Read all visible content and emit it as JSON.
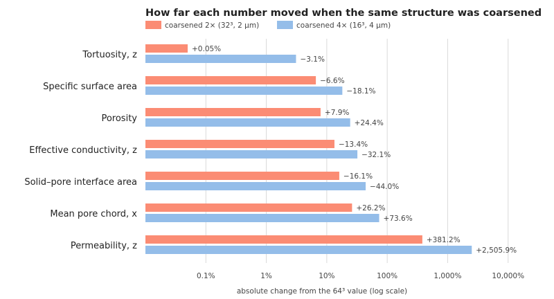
{
  "chart_data": {
    "type": "bar",
    "orientation": "horizontal",
    "title": "How far each number moved when the same structure was coarsened",
    "xlabel": "absolute change from the 64³ value  (log scale)",
    "ylabel": "",
    "x_scale": "log",
    "xlim": [
      0.01,
      20000
    ],
    "ticks": [
      {
        "value": 0.1,
        "label": "0.1%"
      },
      {
        "value": 1,
        "label": "1%"
      },
      {
        "value": 10,
        "label": "10%"
      },
      {
        "value": 100,
        "label": "100%"
      },
      {
        "value": 1000,
        "label": "1,000%"
      },
      {
        "value": 10000,
        "label": "10,000%"
      }
    ],
    "grid": true,
    "legend_position": "top-left",
    "categories": [
      "Tortuosity, z",
      "Specific surface area",
      "Porosity",
      "Effective conductivity, z",
      "Solid–pore interface area",
      "Mean pore chord, x",
      "Permeability, z"
    ],
    "series": [
      {
        "name": "coarsened 2× (32³, 2 µm)",
        "color": "#fb8c74",
        "values": [
          0.05,
          6.6,
          7.9,
          13.4,
          16.1,
          26.2,
          381.2
        ],
        "labels": [
          "+0.05%",
          "−6.6%",
          "+7.9%",
          "−13.4%",
          "−16.1%",
          "+26.2%",
          "+381.2%"
        ]
      },
      {
        "name": "coarsened 4× (16³, 4 µm)",
        "color": "#94bde9",
        "values": [
          3.1,
          18.1,
          24.4,
          32.1,
          44.0,
          73.6,
          2505.9
        ],
        "labels": [
          "−3.1%",
          "−18.1%",
          "+24.4%",
          "−32.1%",
          "−44.0%",
          "+73.6%",
          "+2,505.9%"
        ]
      }
    ]
  }
}
